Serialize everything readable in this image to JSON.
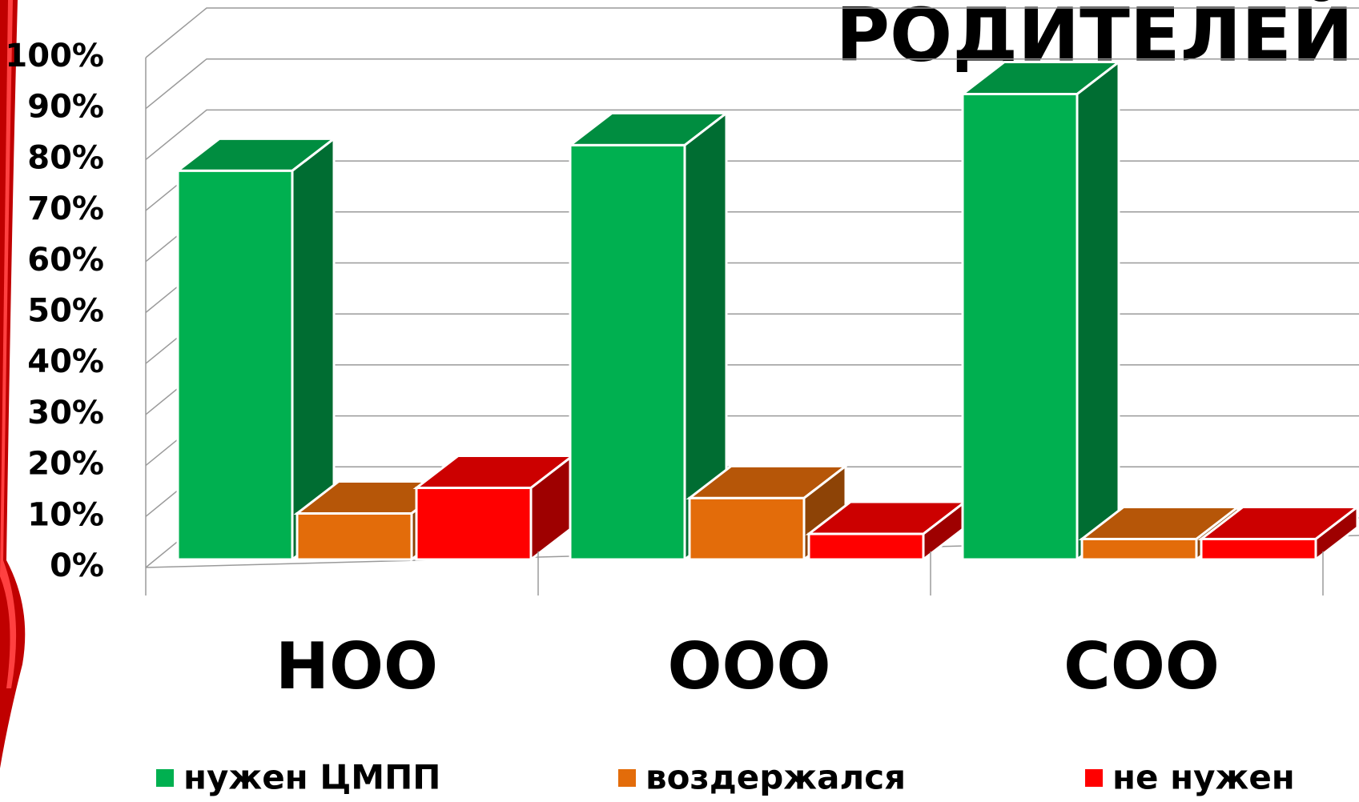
{
  "chart_data": {
    "type": "bar3d",
    "title": "РОДИТЕЛЕЙ",
    "categories": [
      "НОО",
      "ООО",
      "СОО"
    ],
    "series": [
      {
        "name": "нужен ЦМПП",
        "color": "#00b050",
        "values": [
          76,
          81,
          91
        ]
      },
      {
        "name": "воздержался",
        "color": "#e36c0a",
        "values": [
          9,
          12,
          4
        ]
      },
      {
        "name": "не нужен",
        "color": "#ff0000",
        "values": [
          14,
          5,
          4
        ]
      }
    ],
    "ylim": [
      0,
      100
    ],
    "yticks": [
      {
        "value": 0,
        "label": "0%"
      },
      {
        "value": 10,
        "label": "10%"
      },
      {
        "value": 20,
        "label": "20%"
      },
      {
        "value": 30,
        "label": "30%"
      },
      {
        "value": 40,
        "label": "40%"
      },
      {
        "value": 50,
        "label": "50%"
      },
      {
        "value": 60,
        "label": "60%"
      },
      {
        "value": 70,
        "label": "70%"
      },
      {
        "value": 80,
        "label": "80%"
      },
      {
        "value": 90,
        "label": "90%"
      },
      {
        "value": 100,
        "label": "100%"
      }
    ],
    "grid": true,
    "legend": "bottom"
  }
}
